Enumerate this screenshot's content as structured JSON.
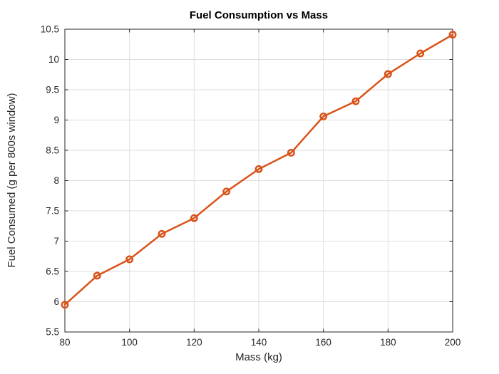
{
  "chart_data": {
    "type": "line",
    "title": "Fuel Consumption vs Mass",
    "xlabel": "Mass (kg)",
    "ylabel": "Fuel Consumed (g per 800s window)",
    "x": [
      80,
      90,
      100,
      110,
      120,
      130,
      140,
      150,
      160,
      170,
      180,
      190,
      200
    ],
    "y": [
      5.95,
      6.43,
      6.7,
      7.12,
      7.38,
      7.82,
      8.19,
      8.46,
      9.06,
      9.31,
      9.76,
      10.1,
      10.41
    ],
    "xlim": [
      80,
      200
    ],
    "ylim": [
      5.5,
      10.5
    ],
    "xticks": [
      80,
      100,
      120,
      140,
      160,
      180,
      200
    ],
    "yticks": [
      5.5,
      6,
      6.5,
      7,
      7.5,
      8,
      8.5,
      9,
      9.5,
      10,
      10.5
    ],
    "grid": true,
    "legend": null,
    "marker": "circle",
    "line_color": "#D95319",
    "marker_color": "#D95319",
    "grid_color": "#DEDEDE",
    "axis_color": "#262626",
    "background": "#FFFFFF"
  }
}
